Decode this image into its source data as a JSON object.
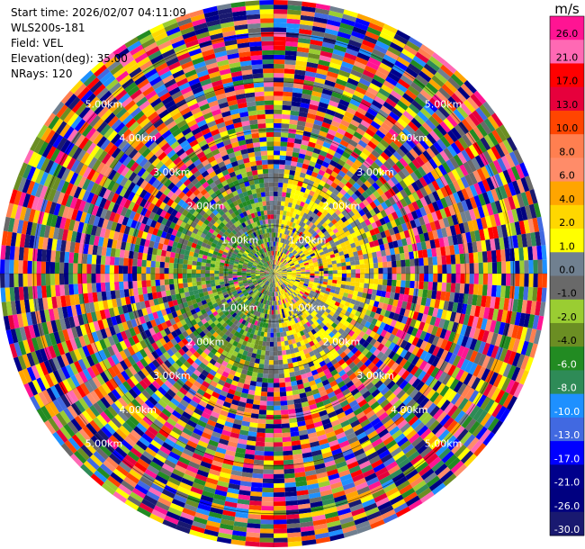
{
  "info": {
    "start_time": "Start time: 2026/02/07 04:11:09",
    "instrument": "WLS200s-181",
    "field": "Field: VEL",
    "elevation": "Elevation(deg): 35.00",
    "nrays": "NRays: 120"
  },
  "chart_data": {
    "type": "heatmap",
    "projection": "polar-ppi",
    "title": "",
    "field": "VEL",
    "n_rays": 120,
    "n_gates": 60,
    "range_rings_km": [
      1.0,
      2.0,
      3.0,
      4.0,
      5.0
    ],
    "range_ring_labels": [
      "1.00km",
      "2.00km",
      "3.00km",
      "4.00km",
      "5.00km"
    ],
    "max_range_km": 5.7,
    "colorbar": {
      "unit": "m/s",
      "tick_labels": [
        "26.0",
        "21.0",
        "17.0",
        "13.0",
        "10.0",
        "8.0",
        "6.0",
        "4.0",
        "2.0",
        "1.0",
        "0.0",
        "-1.0",
        "-2.0",
        "-4.0",
        "-6.0",
        "-8.0",
        "-10.0",
        "-13.0",
        "-17.0",
        "-21.0",
        "-26.0",
        "-30.0"
      ],
      "colors": [
        "#ff1493",
        "#ff69b4",
        "#ff0000",
        "#e6003c",
        "#ff4500",
        "#ff7f50",
        "#ff8c69",
        "#ffa500",
        "#ffd700",
        "#ffff00",
        "#708090",
        "#696969",
        "#9acd32",
        "#6b8e23",
        "#228b22",
        "#2e8b57",
        "#1e90ff",
        "#4169e1",
        "#0000ff",
        "#00008b",
        "#000080",
        "#191970"
      ]
    }
  }
}
